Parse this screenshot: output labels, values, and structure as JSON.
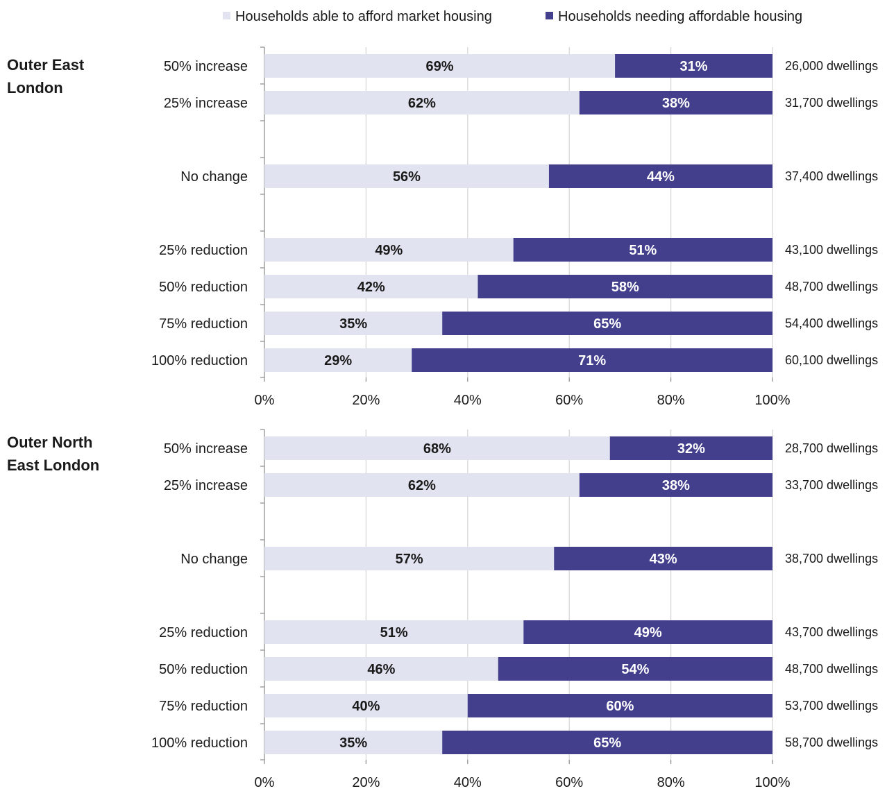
{
  "legend": {
    "items": [
      {
        "label": "Households able to afford market housing",
        "color": "#e2e3f1"
      },
      {
        "label": "Households needing affordable housing",
        "color": "#433f8d"
      }
    ]
  },
  "chart_data": [
    {
      "type": "bar",
      "orientation": "horizontal",
      "stacked": true,
      "panel_label": "Outer East London",
      "categories": [
        "50% increase",
        "25% increase",
        "No change",
        "25% reduction",
        "50% reduction",
        "75% reduction",
        "100% reduction"
      ],
      "series": [
        {
          "name": "Households able to afford market housing",
          "values": [
            69,
            62,
            56,
            49,
            42,
            35,
            29
          ]
        },
        {
          "name": "Households needing affordable housing",
          "values": [
            31,
            38,
            44,
            51,
            58,
            65,
            71
          ]
        }
      ],
      "data_labels": [
        [
          "69%",
          "62%",
          "56%",
          "49%",
          "42%",
          "35%",
          "29%"
        ],
        [
          "31%",
          "38%",
          "44%",
          "51%",
          "58%",
          "65%",
          "71%"
        ]
      ],
      "right_labels": [
        "26,000 dwellings",
        "31,700 dwellings",
        "37,400 dwellings",
        "43,100 dwellings",
        "48,700 dwellings",
        "54,400 dwellings",
        "60,100 dwellings"
      ],
      "x_ticks": [
        "0%",
        "20%",
        "40%",
        "60%",
        "80%",
        "100%"
      ],
      "xlim": [
        0,
        100
      ],
      "grid": true
    },
    {
      "type": "bar",
      "orientation": "horizontal",
      "stacked": true,
      "panel_label": "Outer North East London",
      "categories": [
        "50% increase",
        "25% increase",
        "No change",
        "25% reduction",
        "50% reduction",
        "75% reduction",
        "100% reduction"
      ],
      "series": [
        {
          "name": "Households able to afford market housing",
          "values": [
            68,
            62,
            57,
            51,
            46,
            40,
            35
          ]
        },
        {
          "name": "Households needing affordable housing",
          "values": [
            32,
            38,
            43,
            49,
            54,
            60,
            65
          ]
        }
      ],
      "data_labels": [
        [
          "68%",
          "62%",
          "57%",
          "51%",
          "46%",
          "40%",
          "35%"
        ],
        [
          "32%",
          "38%",
          "43%",
          "49%",
          "54%",
          "60%",
          "65%"
        ]
      ],
      "right_labels": [
        "28,700 dwellings",
        "33,700 dwellings",
        "38,700 dwellings",
        "43,700 dwellings",
        "48,700 dwellings",
        "53,700 dwellings",
        "58,700 dwellings"
      ],
      "x_ticks": [
        "0%",
        "20%",
        "40%",
        "60%",
        "80%",
        "100%"
      ],
      "xlim": [
        0,
        100
      ],
      "grid": true
    }
  ]
}
